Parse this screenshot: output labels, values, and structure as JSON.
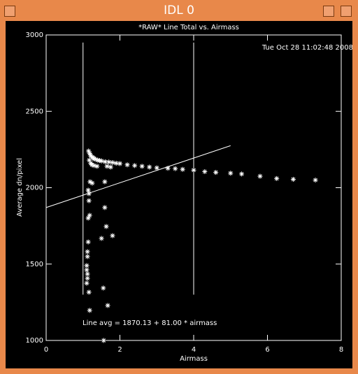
{
  "window": {
    "title": "IDL 0"
  },
  "chart_data": {
    "type": "scatter",
    "title": "*RAW* Line Total vs. Airmass",
    "x_label": "Airmass",
    "y_label": "Average dn/pixel",
    "timestamp": "Tue Oct 28 11:02:48 2008",
    "fit_label": "Line avg = 1870.13 + 81.00 * airmass",
    "fit": {
      "intercept": 1870.13,
      "slope": 81.0,
      "xrange": [
        0,
        5
      ]
    },
    "vlines": [
      1,
      4
    ],
    "vline_range": [
      1300,
      2950
    ],
    "color": "#ffffff",
    "xlim": [
      0,
      8
    ],
    "xticks": [
      0,
      2,
      4,
      6,
      8
    ],
    "ylim": [
      1000,
      3000
    ],
    "yticks": [
      1000,
      1500,
      2000,
      2500,
      3000
    ],
    "x": [
      1.14,
      1.12,
      1.12,
      1.1,
      1.1,
      1.12,
      1.12,
      1.1,
      1.16,
      1.18,
      1.56,
      1.67,
      1.55,
      1.5,
      1.63,
      1.8,
      1.59,
      1.18,
      1.14,
      1.16,
      1.14,
      1.19,
      1.59,
      1.25,
      1.16,
      1.15,
      1.18,
      1.2,
      1.22,
      1.25,
      1.28,
      1.3,
      1.35,
      1.4,
      1.45,
      1.5,
      1.6,
      1.7,
      1.8,
      1.9,
      2.0,
      2.2,
      2.4,
      2.6,
      2.8,
      3.0,
      3.3,
      3.5,
      3.7,
      4.0,
      4.3,
      4.6,
      5.0,
      5.3,
      5.8,
      6.25,
      6.7,
      7.3,
      1.17,
      1.21,
      1.24,
      1.3,
      1.38,
      1.65,
      1.75
    ],
    "y": [
      1645,
      1581,
      1549,
      1490,
      1462,
      1435,
      1407,
      1375,
      1316,
      1197,
      1000,
      1229,
      1343,
      1668,
      1746,
      1686,
      1870,
      1819,
      1801,
      1915,
      1984,
      2039,
      2039,
      2030,
      1961,
      2240,
      2225,
      2215,
      2205,
      2200,
      2195,
      2190,
      2185,
      2180,
      2178,
      2175,
      2170,
      2168,
      2165,
      2160,
      2158,
      2150,
      2145,
      2140,
      2135,
      2130,
      2127,
      2125,
      2120,
      2115,
      2105,
      2100,
      2095,
      2090,
      2075,
      2060,
      2055,
      2050,
      2180,
      2160,
      2150,
      2145,
      2140,
      2140,
      2135
    ]
  }
}
